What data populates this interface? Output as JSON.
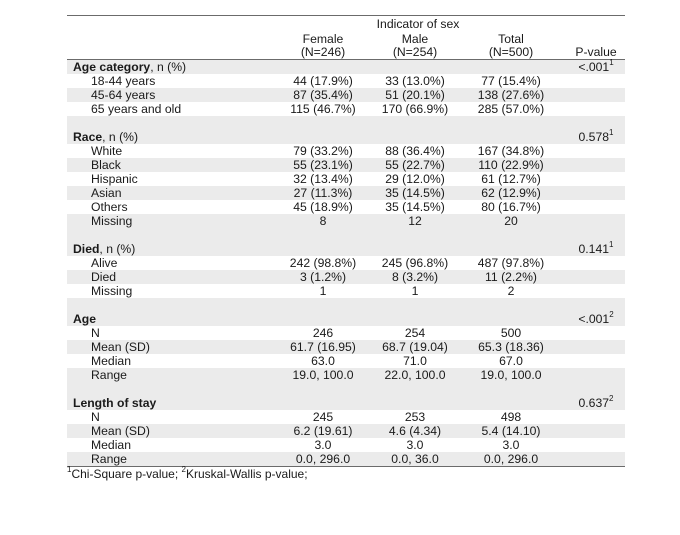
{
  "header": {
    "spanner": "Indicator of sex",
    "female": "Female",
    "female_n": "(N=246)",
    "male": "Male",
    "male_n": "(N=254)",
    "total": "Total",
    "total_n": "(N=500)",
    "pvalue": "P-value"
  },
  "sections": [
    {
      "title": "Age category",
      "suffix": ", n (%)",
      "p": "<.001",
      "p_note": "1",
      "rows": [
        {
          "label": "18-44 years",
          "female": "44 (17.9%)",
          "male": "33 (13.0%)",
          "total": "77 (15.4%)"
        },
        {
          "label": "45-64 years",
          "female": "87 (35.4%)",
          "male": "51 (20.1%)",
          "total": "138 (27.6%)"
        },
        {
          "label": "65 years and old",
          "female": "115 (46.7%)",
          "male": "170 (66.9%)",
          "total": "285 (57.0%)"
        }
      ]
    },
    {
      "title": "Race",
      "suffix": ", n (%)",
      "p": "0.578",
      "p_note": "1",
      "rows": [
        {
          "label": "White",
          "female": "79 (33.2%)",
          "male": "88 (36.4%)",
          "total": "167 (34.8%)"
        },
        {
          "label": "Black",
          "female": "55 (23.1%)",
          "male": "55 (22.7%)",
          "total": "110 (22.9%)"
        },
        {
          "label": "Hispanic",
          "female": "32 (13.4%)",
          "male": "29 (12.0%)",
          "total": "61 (12.7%)"
        },
        {
          "label": "Asian",
          "female": "27 (11.3%)",
          "male": "35 (14.5%)",
          "total": "62 (12.9%)"
        },
        {
          "label": "Others",
          "female": "45 (18.9%)",
          "male": "35 (14.5%)",
          "total": "80 (16.7%)"
        },
        {
          "label": "Missing",
          "female": "8",
          "male": "12",
          "total": "20"
        }
      ]
    },
    {
      "title": "Died",
      "suffix": ", n (%)",
      "p": "0.141",
      "p_note": "1",
      "rows": [
        {
          "label": "Alive",
          "female": "242 (98.8%)",
          "male": "245 (96.8%)",
          "total": "487 (97.8%)"
        },
        {
          "label": "Died",
          "female": "3 (1.2%)",
          "male": "8 (3.2%)",
          "total": "11 (2.2%)"
        },
        {
          "label": "Missing",
          "female": "1",
          "male": "1",
          "total": "2"
        }
      ]
    },
    {
      "title": "Age",
      "suffix": "",
      "p": "<.001",
      "p_note": "2",
      "rows": [
        {
          "label": "N",
          "female": "246",
          "male": "254",
          "total": "500"
        },
        {
          "label": "Mean (SD)",
          "female": "61.7 (16.95)",
          "male": "68.7 (19.04)",
          "total": "65.3 (18.36)"
        },
        {
          "label": "Median",
          "female": "63.0",
          "male": "71.0",
          "total": "67.0"
        },
        {
          "label": "Range",
          "female": "19.0, 100.0",
          "male": "22.0, 100.0",
          "total": "19.0, 100.0"
        }
      ]
    },
    {
      "title": "Length of stay",
      "suffix": "",
      "p": "0.637",
      "p_note": "2",
      "rows": [
        {
          "label": "N",
          "female": "245",
          "male": "253",
          "total": "498"
        },
        {
          "label": "Mean (SD)",
          "female": "6.2 (19.61)",
          "male": "4.6 (4.34)",
          "total": "5.4 (14.10)"
        },
        {
          "label": "Median",
          "female": "3.0",
          "male": "3.0",
          "total": "3.0"
        },
        {
          "label": "Range",
          "female": "0.0, 296.0",
          "male": "0.0, 36.0",
          "total": "0.0, 296.0"
        }
      ]
    }
  ],
  "footnote": {
    "n1": "1",
    "t1": "Chi-Square p-value; ",
    "n2": "2",
    "t2": "Kruskal-Wallis p-value;"
  }
}
